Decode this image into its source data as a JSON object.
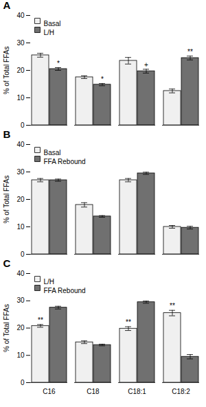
{
  "chart_data": [
    {
      "type": "bar",
      "title": "A",
      "ylabel": "% of Total FFAs",
      "categories": [
        "C16",
        "C18",
        "C18:1",
        "C18:2"
      ],
      "series": [
        {
          "name": "Basal",
          "color": "#f0f0f0",
          "values": [
            25.5,
            17.5,
            23.5,
            12.5
          ],
          "errors": [
            0.7,
            0.5,
            1.2,
            0.7
          ]
        },
        {
          "name": "L/H",
          "color": "#707070",
          "values": [
            20.5,
            14.8,
            19.7,
            24.5
          ],
          "errors": [
            0.5,
            0.4,
            0.7,
            0.7
          ]
        }
      ],
      "annotations": [
        {
          "text": "*",
          "category": "C16",
          "series": "L/H"
        },
        {
          "text": "*",
          "category": "C18",
          "series": "L/H"
        },
        {
          "text": "+",
          "category": "C18:1",
          "series": "L/H"
        },
        {
          "text": "**",
          "category": "C18:2",
          "series": "L/H"
        }
      ],
      "ylim": [
        0,
        40
      ],
      "yticks": [
        0,
        10,
        20,
        30,
        40
      ],
      "grid": false,
      "legend": "upper left",
      "tick_labels": "y"
    },
    {
      "type": "bar",
      "title": "B",
      "ylabel": "% of Total FFAs",
      "categories": [
        "C16",
        "C18",
        "C18:1",
        "C18:2"
      ],
      "series": [
        {
          "name": "Basal",
          "color": "#f0f0f0",
          "values": [
            27.0,
            18.0,
            27.0,
            10.0
          ],
          "errors": [
            0.6,
            0.8,
            0.6,
            0.5
          ]
        },
        {
          "name": "FFA Rebound",
          "color": "#707070",
          "values": [
            27.0,
            13.8,
            29.5,
            9.7
          ],
          "errors": [
            0.4,
            0.3,
            0.4,
            0.5
          ]
        }
      ],
      "ylim": [
        0,
        40
      ],
      "yticks": [
        0,
        10,
        20,
        30,
        40
      ],
      "grid": false,
      "legend": "upper left",
      "tick_labels": "y"
    },
    {
      "type": "bar",
      "title": "C",
      "ylabel": "% of Total FFAs",
      "categories": [
        "C16",
        "C18",
        "C18:1",
        "C18:2"
      ],
      "series": [
        {
          "name": "L/H",
          "color": "#f0f0f0",
          "values": [
            20.8,
            14.8,
            19.8,
            25.5
          ],
          "errors": [
            0.5,
            0.5,
            0.7,
            1.0
          ]
        },
        {
          "name": "FFA Rebound",
          "color": "#707070",
          "values": [
            27.5,
            13.8,
            29.5,
            9.5
          ],
          "errors": [
            0.5,
            0.3,
            0.4,
            0.8
          ]
        }
      ],
      "annotations": [
        {
          "text": "**",
          "category": "C16",
          "series": "L/H"
        },
        {
          "text": "**",
          "category": "C18:1",
          "series": "L/H"
        },
        {
          "text": "**",
          "category": "C18:2",
          "series": "L/H"
        }
      ],
      "ylim": [
        0,
        40
      ],
      "yticks": [
        0,
        10,
        20,
        30,
        40
      ],
      "grid": false,
      "legend": "upper left"
    }
  ]
}
